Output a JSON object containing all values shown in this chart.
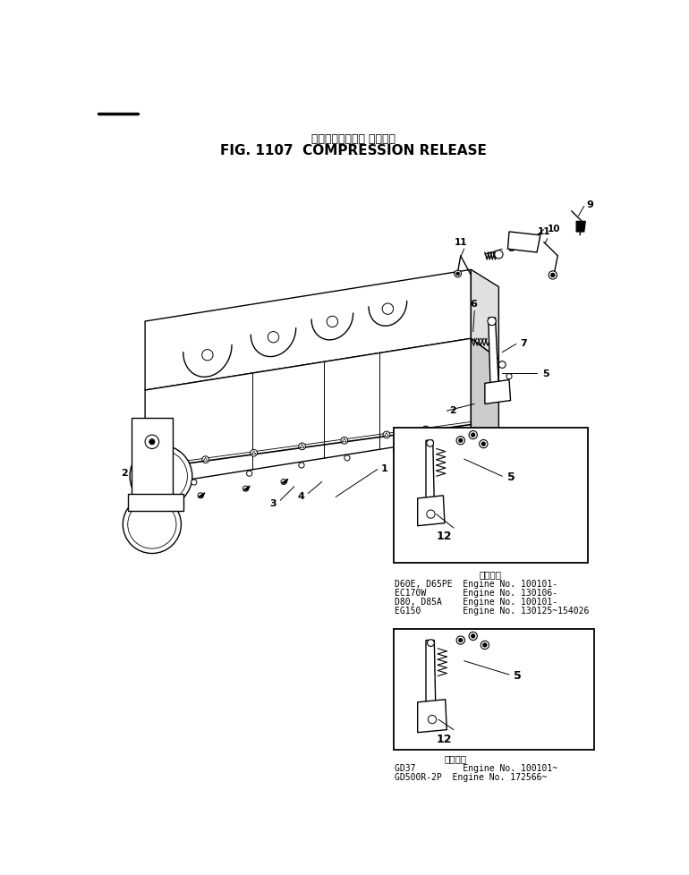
{
  "title_japanese": "コンプレッション リリーズ",
  "title_english": "FIG. 1107  COMPRESSION RELEASE",
  "bg_color": "#ffffff",
  "inset1_notes": [
    "D60E, D65PE  Engine No. 100101-",
    "EC170W       Engine No. 130106-",
    "D80, D85A    Engine No. 100101-",
    "EG150        Engine No. 130125~154026"
  ],
  "inset2_notes": [
    "GD37         Engine No. 100101~",
    "GD500R-2P  Engine No. 172566~"
  ],
  "inset1_note_title": "適用展号",
  "inset2_note_title": "適用展号"
}
